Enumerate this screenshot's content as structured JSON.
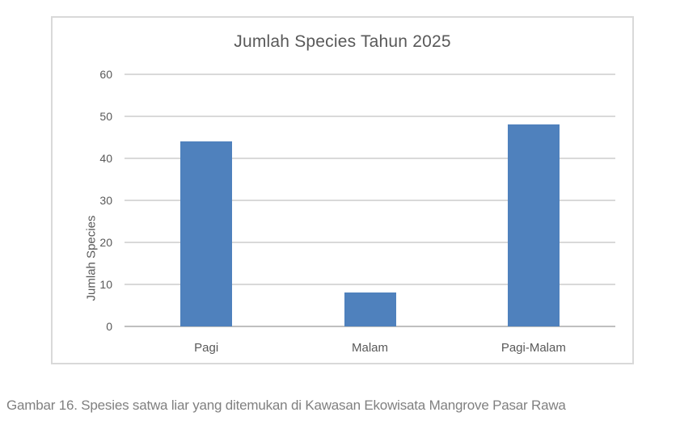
{
  "chart_data": {
    "type": "bar",
    "title": "Jumlah Species Tahun 2025",
    "categories": [
      "Pagi",
      "Malam",
      "Pagi-Malam"
    ],
    "values": [
      44,
      8,
      48
    ],
    "xlabel": "",
    "ylabel": "Jumlah Species",
    "ylim": [
      0,
      60
    ],
    "ytick_step": 10,
    "yticks": [
      0,
      10,
      20,
      30,
      40,
      50,
      60
    ],
    "grid": "horizontal",
    "legend": "none",
    "bar_color": "#4F81BD",
    "gridline_color": "#D9D9D9",
    "axis_line_color": "#BFBFBF",
    "text_color": "#595959",
    "frame_border_color": "#D9D9D9"
  },
  "caption": {
    "text": "Gambar 16. Spesies satwa liar yang ditemukan di Kawasan Ekowisata Mangrove Pasar Rawa",
    "color": "#808080"
  }
}
